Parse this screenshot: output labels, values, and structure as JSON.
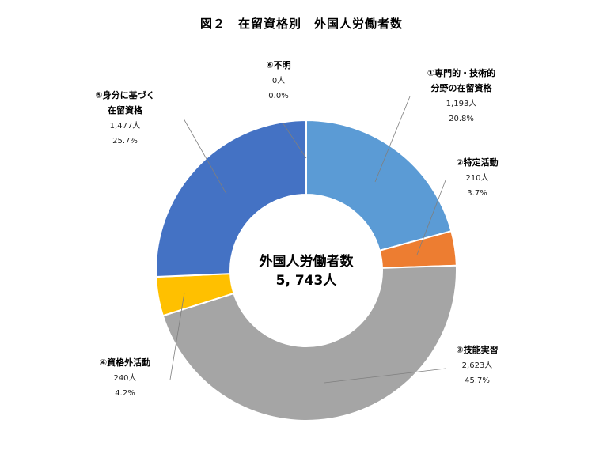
{
  "chart_data": {
    "type": "pie",
    "title": "図２　在留資格別　外国人労働者数",
    "center": {
      "line1": "外国人労働者数",
      "line2": "5, 743人"
    },
    "colors": {
      "s1": "#5B9BD5",
      "s2": "#ED7D31",
      "s3": "#A5A5A5",
      "s4": "#FFC000",
      "s5": "#4472C4",
      "s6": "#70AD47"
    },
    "slices": [
      {
        "key": "s1",
        "name_lines": [
          "①専門的・技術的",
          "分野の在留資格"
        ],
        "count": "1,193人",
        "percent": "20.8%",
        "value": 20.8
      },
      {
        "key": "s2",
        "name_lines": [
          "②特定活動"
        ],
        "count": "210人",
        "percent": "3.7%",
        "value": 3.7
      },
      {
        "key": "s3",
        "name_lines": [
          "③技能実習"
        ],
        "count": "2,623人",
        "percent": "45.7%",
        "value": 45.7
      },
      {
        "key": "s4",
        "name_lines": [
          "④資格外活動"
        ],
        "count": "240人",
        "percent": "4.2%",
        "value": 4.2
      },
      {
        "key": "s5",
        "name_lines": [
          "⑤身分に基づく",
          "在留資格"
        ],
        "count": "1,477人",
        "percent": "25.7%",
        "value": 25.7
      },
      {
        "key": "s6",
        "name_lines": [
          "⑥不明"
        ],
        "count": "0人",
        "percent": "0.0%",
        "value": 0.0
      }
    ]
  }
}
